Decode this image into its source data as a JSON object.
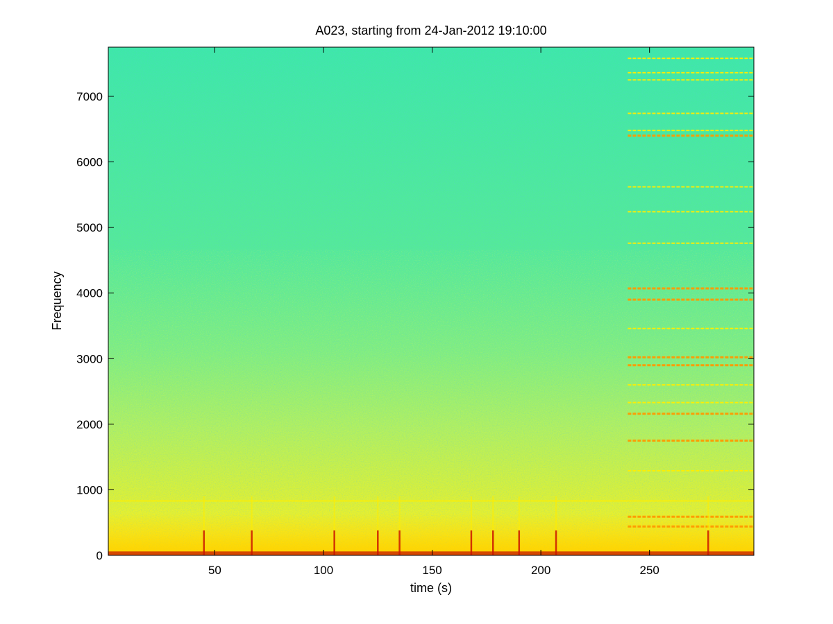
{
  "chart_data": {
    "type": "heatmap",
    "subtype": "spectrogram",
    "title": "A023, starting from 24-Jan-2012 19:10:00",
    "xlabel": "time (s)",
    "ylabel": "Frequency",
    "xlim": [
      1,
      298
    ],
    "ylim": [
      0,
      7750
    ],
    "xticks": [
      50,
      100,
      150,
      200,
      250
    ],
    "yticks": [
      0,
      1000,
      2000,
      3000,
      4000,
      5000,
      6000,
      7000
    ],
    "grid": false,
    "colormap": "jet",
    "colors": {
      "background": "#3ee8a6",
      "mid": "#b8f040",
      "high": "#ffee00",
      "peak": "#cc1800"
    },
    "tonal_lines": {
      "start_time": 240,
      "end_time": 298,
      "frequencies": [
        7580,
        7360,
        7250,
        6740,
        6480,
        6400,
        5620,
        5240,
        4760,
        4070,
        3900,
        3460,
        3020,
        2900,
        2600,
        2330,
        2160,
        1750,
        1290,
        590,
        440
      ]
    },
    "persistent_line": {
      "frequency": 830,
      "start_time": 1,
      "end_time": 298
    },
    "transients": [
      45,
      67,
      105,
      125,
      135,
      168,
      178,
      190,
      207,
      277
    ]
  }
}
